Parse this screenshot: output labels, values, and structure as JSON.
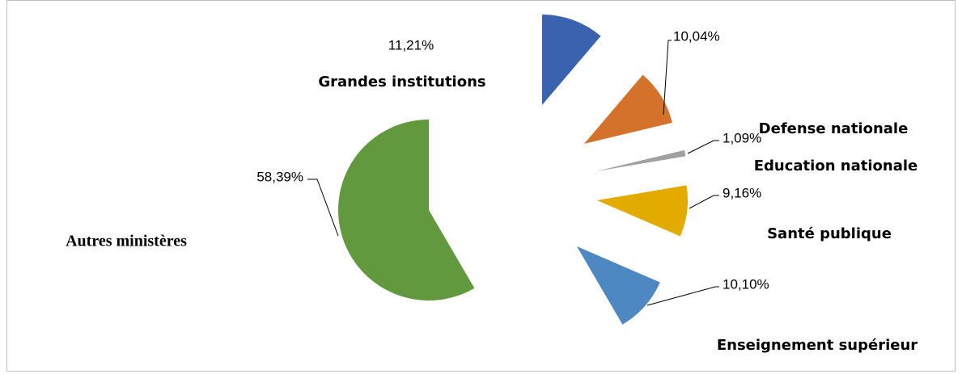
{
  "chart_data": {
    "type": "pie",
    "categories": [
      "Grandes institutions",
      "Defense nationale",
      "Education nationale",
      "Santé publique",
      "Enseignement supérieur",
      "Autres ministères"
    ],
    "values": [
      11.21,
      10.04,
      1.09,
      9.16,
      10.1,
      58.39
    ],
    "value_labels": [
      "11,21%",
      "10,04%",
      "1,09%",
      "9,16%",
      "10,10%",
      "58,39%"
    ],
    "colors": [
      "#3a62ae",
      "#d4712b",
      "#a0a0a0",
      "#e3aa00",
      "#4e88c2",
      "#62993e"
    ]
  }
}
